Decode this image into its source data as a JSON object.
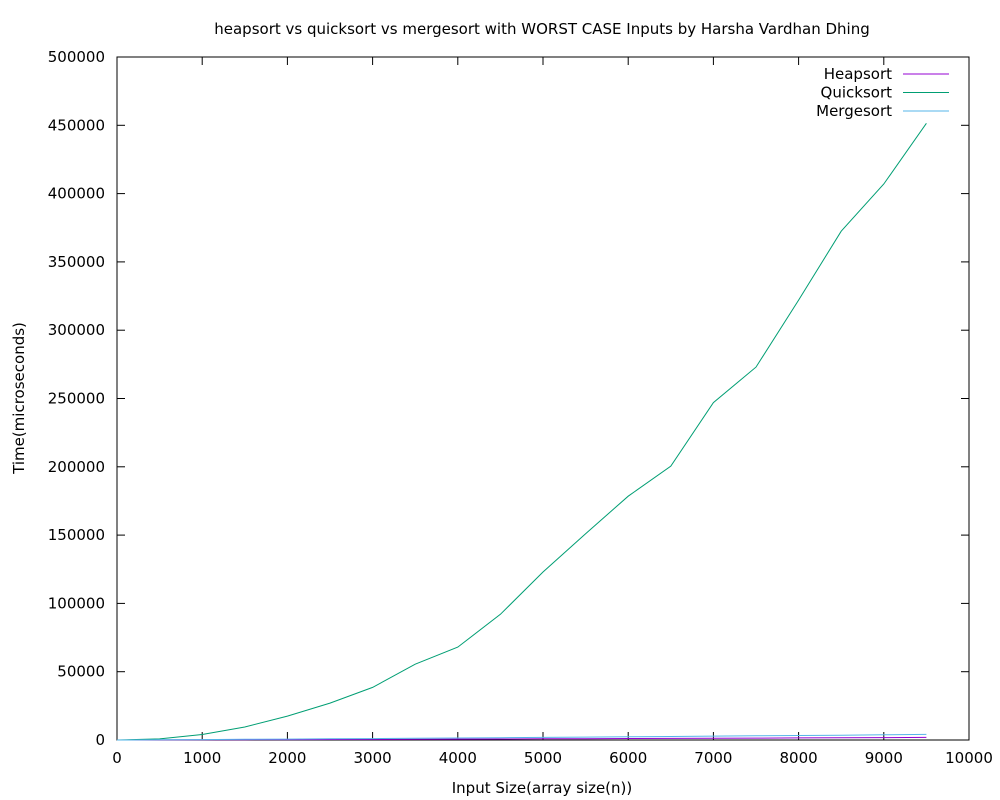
{
  "chart_data": {
    "type": "line",
    "title": "heapsort vs quicksort vs mergesort with WORST CASE Inputs by Harsha Vardhan Dhing",
    "xlabel": "Input Size(array size(n))",
    "ylabel": "Time(microseconds)",
    "xlim": [
      0,
      10000
    ],
    "ylim": [
      0,
      500000
    ],
    "xticks": [
      "0",
      "1000",
      "2000",
      "3000",
      "4000",
      "5000",
      "6000",
      "7000",
      "8000",
      "9000",
      "10000"
    ],
    "yticks": [
      "0",
      "50000",
      "100000",
      "150000",
      "200000",
      "250000",
      "300000",
      "350000",
      "400000",
      "450000",
      "500000"
    ],
    "grid": false,
    "legend_position": "top-right",
    "x": [
      0,
      500,
      1000,
      1500,
      2000,
      2500,
      3000,
      3500,
      4000,
      4500,
      5000,
      5500,
      6000,
      6500,
      7000,
      7500,
      8000,
      8500,
      9000,
      9500
    ],
    "series": [
      {
        "name": "Heapsort",
        "color": "#9400d3",
        "values": [
          0,
          60,
          130,
          210,
          290,
          380,
          470,
          560,
          660,
          760,
          860,
          970,
          1080,
          1190,
          1300,
          1410,
          1530,
          1650,
          1770,
          1900
        ]
      },
      {
        "name": "Quicksort",
        "color": "#009e73",
        "values": [
          0,
          800,
          4000,
          9500,
          17500,
          27000,
          38500,
          55500,
          68000,
          92000,
          123000,
          151000,
          178500,
          200500,
          247000,
          273000,
          322000,
          372500,
          407000,
          451500
        ]
      },
      {
        "name": "Mergesort",
        "color": "#56b4e9",
        "values": [
          0,
          120,
          300,
          480,
          660,
          860,
          1060,
          1260,
          1470,
          1680,
          1900,
          2130,
          2360,
          2590,
          2820,
          3060,
          3300,
          3550,
          3800,
          4100
        ]
      }
    ]
  }
}
